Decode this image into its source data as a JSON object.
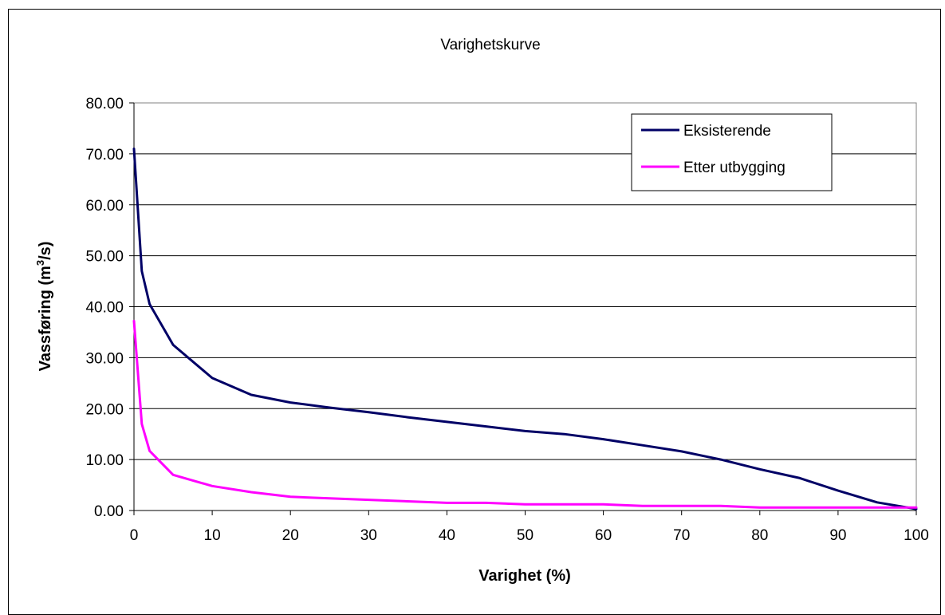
{
  "chart_data": {
    "type": "line",
    "title": "Varighetskurve",
    "xlabel": "Varighet (%)",
    "ylabel": {
      "main": "Vassføring (m",
      "sup": "3",
      "tail": "/s)"
    },
    "xlim": [
      0,
      100
    ],
    "ylim": [
      0,
      80
    ],
    "x_ticks": [
      "0",
      "10",
      "20",
      "30",
      "40",
      "50",
      "60",
      "70",
      "80",
      "90",
      "100"
    ],
    "y_ticks": [
      "0.00",
      "10.00",
      "20.00",
      "30.00",
      "40.00",
      "50.00",
      "60.00",
      "70.00",
      "80.00"
    ],
    "grid": {
      "horizontal": true,
      "vertical": false
    },
    "legend_position": "top-right",
    "series": [
      {
        "name": "Eksisterende",
        "color": "#000066",
        "x": [
          0,
          1,
          2,
          5,
          10,
          15,
          20,
          25,
          30,
          35,
          40,
          45,
          50,
          55,
          60,
          65,
          70,
          75,
          80,
          85,
          90,
          95,
          100
        ],
        "y": [
          71.0,
          47.0,
          40.5,
          32.5,
          26.0,
          22.7,
          21.2,
          20.2,
          19.3,
          18.3,
          17.4,
          16.5,
          15.6,
          15.0,
          14.0,
          12.8,
          11.6,
          10.0,
          8.1,
          6.4,
          3.9,
          1.6,
          0.3
        ]
      },
      {
        "name": "Etter utbygging",
        "color": "#ff00ff",
        "x": [
          0,
          1,
          2,
          5,
          10,
          15,
          20,
          25,
          30,
          35,
          40,
          45,
          50,
          55,
          60,
          65,
          70,
          75,
          80,
          85,
          90,
          95,
          100
        ],
        "y": [
          37.2,
          17.0,
          11.7,
          7.0,
          4.8,
          3.6,
          2.7,
          2.4,
          2.1,
          1.8,
          1.5,
          1.5,
          1.2,
          1.2,
          1.2,
          0.9,
          0.9,
          0.9,
          0.6,
          0.6,
          0.6,
          0.6,
          0.6
        ]
      }
    ]
  }
}
